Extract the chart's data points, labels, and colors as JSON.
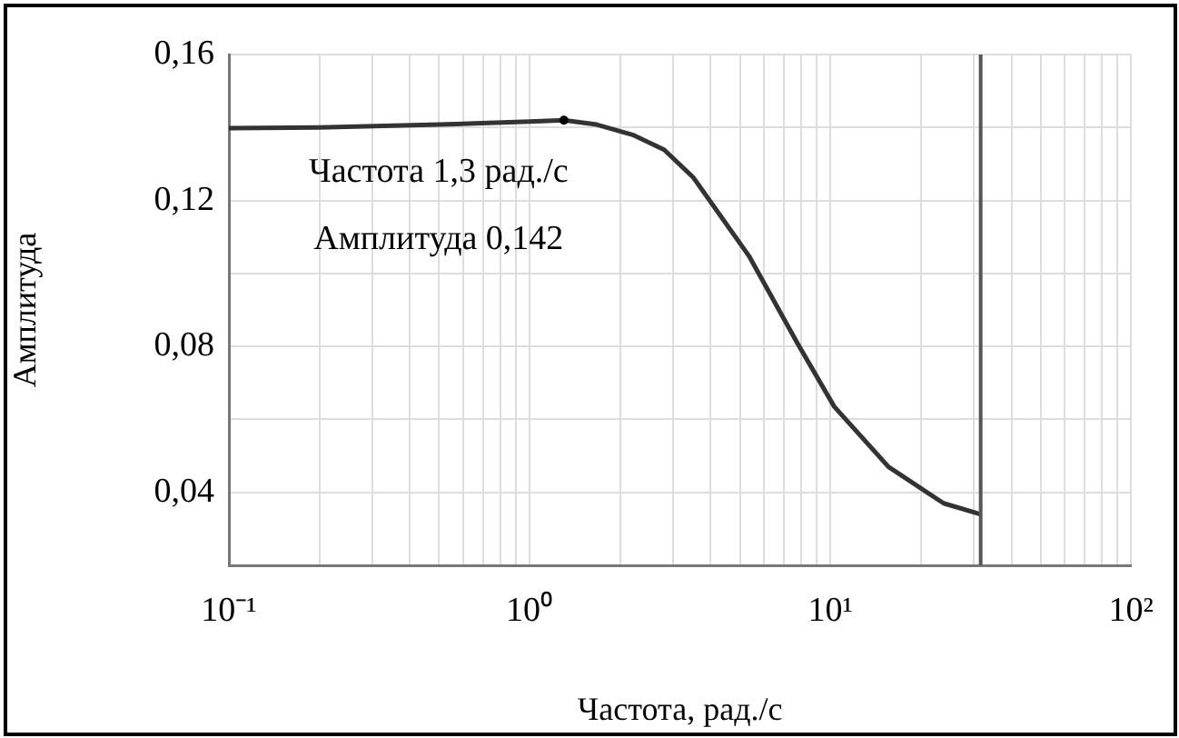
{
  "chart_data": {
    "type": "line",
    "xlabel": "Частота, рад./с",
    "ylabel": "Амплитуда",
    "log": "x",
    "x": [
      0.1,
      0.2,
      0.5,
      1.0,
      1.3,
      1.67,
      2.2,
      2.8,
      3.5,
      5.36,
      7.78,
      10.3,
      15.6,
      23.8,
      31.6
    ],
    "series": [
      {
        "color": "#333333",
        "values": [
          0.1398,
          0.14,
          0.1408,
          0.1416,
          0.142,
          0.1408,
          0.138,
          0.1339,
          0.1263,
          0.1048,
          0.0808,
          0.0635,
          0.047,
          0.037,
          0.034
        ]
      }
    ],
    "xlim": [
      0.1,
      100
    ],
    "xticks": [
      {
        "value": 0.1,
        "label": "10⁻¹"
      },
      {
        "value": 0.2,
        "label": null
      },
      {
        "value": 0.3,
        "label": null
      },
      {
        "value": 0.4,
        "label": null
      },
      {
        "value": 0.5,
        "label": null
      },
      {
        "value": 0.6,
        "label": null
      },
      {
        "value": 0.7,
        "label": null
      },
      {
        "value": 0.8,
        "label": null
      },
      {
        "value": 0.9,
        "label": null
      },
      {
        "value": 1,
        "label": "10⁰"
      },
      {
        "value": 2,
        "label": null
      },
      {
        "value": 3,
        "label": null
      },
      {
        "value": 4,
        "label": null
      },
      {
        "value": 5,
        "label": null
      },
      {
        "value": 6,
        "label": null
      },
      {
        "value": 7,
        "label": null
      },
      {
        "value": 8,
        "label": null
      },
      {
        "value": 9,
        "label": null
      },
      {
        "value": 10,
        "label": "10¹"
      },
      {
        "value": 20,
        "label": null
      },
      {
        "value": 30,
        "label": null
      },
      {
        "value": 40,
        "label": null
      },
      {
        "value": 50,
        "label": null
      },
      {
        "value": 60,
        "label": null
      },
      {
        "value": 70,
        "label": null
      },
      {
        "value": 80,
        "label": null
      },
      {
        "value": 90,
        "label": null
      },
      {
        "value": 100,
        "label": "10²"
      }
    ],
    "ylim": [
      0.02,
      0.16
    ],
    "yticks": [
      {
        "value": 0.02,
        "label": null
      },
      {
        "value": 0.04,
        "label": "0,04"
      },
      {
        "value": 0.06,
        "label": null
      },
      {
        "value": 0.08,
        "label": "0,08"
      },
      {
        "value": 0.1,
        "label": null
      },
      {
        "value": 0.12,
        "label": "0,12"
      },
      {
        "value": 0.14,
        "label": null
      },
      {
        "value": 0.16,
        "label": "0,16"
      }
    ],
    "ref_lines": [
      {
        "axis": "x",
        "value": 31.6,
        "color": "#555555"
      }
    ],
    "annotations": [
      {
        "text": "Частота 1,3 рад./с",
        "x": 1.3,
        "y": 0.142
      },
      {
        "text": "Амплитуда 0,142",
        "x": 1.3,
        "y": 0.142
      }
    ],
    "grid": true,
    "legend": false,
    "marker": "none",
    "line_style": "solid"
  }
}
